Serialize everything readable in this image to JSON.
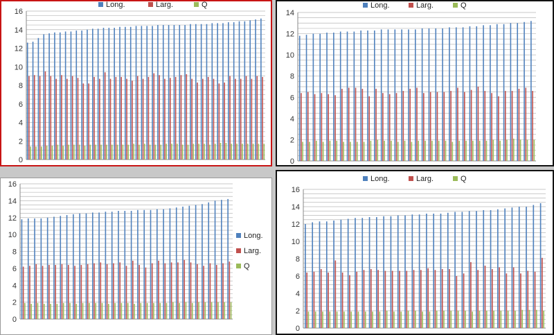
{
  "legend_labels": [
    "Long.",
    "Larg.",
    "Q"
  ],
  "colors": {
    "long": "#4f81bd",
    "larg": "#c0504d",
    "q": "#9bbb59",
    "grid": "#b8b8b8",
    "axis": "#888888"
  },
  "chart_data": [
    {
      "type": "bar",
      "ylim": [
        0,
        16
      ],
      "yticks": [
        0,
        2,
        4,
        6,
        8,
        10,
        12,
        14,
        16
      ],
      "grid": true,
      "legend_position": "top",
      "series": [
        {
          "name": "Long.",
          "values": [
            12.6,
            12.7,
            13.1,
            13.5,
            13.6,
            13.7,
            13.7,
            13.8,
            13.8,
            13.9,
            13.9,
            14.0,
            14.1,
            14.1,
            14.2,
            14.2,
            14.2,
            14.3,
            14.3,
            14.3,
            14.4,
            14.4,
            14.4,
            14.4,
            14.5,
            14.5,
            14.5,
            14.5,
            14.5,
            14.5,
            14.6,
            14.6,
            14.6,
            14.6,
            14.7,
            14.7,
            14.7,
            14.8,
            14.8,
            14.9,
            14.9,
            15.0,
            15.1,
            15.2
          ]
        },
        {
          "name": "Larg.",
          "values": [
            9.0,
            9.1,
            9.0,
            9.5,
            9.0,
            8.7,
            9.1,
            8.7,
            9.0,
            8.8,
            8.2,
            8.2,
            8.9,
            8.7,
            9.4,
            8.7,
            8.9,
            8.9,
            8.7,
            8.5,
            9.0,
            8.7,
            8.9,
            9.3,
            9.1,
            8.7,
            8.8,
            8.9,
            9.1,
            9.2,
            8.7,
            8.3,
            8.7,
            8.9,
            8.7,
            8.2,
            8.3,
            9.0,
            8.7,
            8.7,
            9.0,
            8.7,
            9.0,
            8.9
          ]
        },
        {
          "name": "Q",
          "values": [
            1.4,
            1.4,
            1.4,
            1.5,
            1.5,
            1.6,
            1.5,
            1.6,
            1.6,
            1.6,
            1.5,
            1.6,
            1.6,
            1.6,
            1.6,
            1.6,
            1.6,
            1.6,
            1.6,
            1.7,
            1.6,
            1.7,
            1.6,
            1.6,
            1.6,
            1.7,
            1.7,
            1.7,
            1.6,
            1.6,
            1.7,
            1.7,
            1.7,
            1.6,
            1.7,
            1.8,
            1.8,
            1.7,
            1.7,
            1.7,
            1.7,
            1.7,
            1.7,
            1.7
          ]
        }
      ]
    },
    {
      "type": "bar",
      "ylim": [
        0,
        14
      ],
      "yticks": [
        0,
        2,
        4,
        6,
        8,
        10,
        12,
        14
      ],
      "grid": true,
      "legend_position": "top",
      "series": [
        {
          "name": "Long.",
          "values": [
            11.8,
            11.9,
            12.0,
            12.0,
            12.1,
            12.1,
            12.2,
            12.2,
            12.2,
            12.3,
            12.3,
            12.3,
            12.4,
            12.4,
            12.4,
            12.4,
            12.4,
            12.4,
            12.5,
            12.5,
            12.5,
            12.5,
            12.6,
            12.6,
            12.6,
            12.7,
            12.7,
            12.8,
            12.8,
            12.9,
            12.9,
            13.0,
            13.0,
            13.1,
            13.2
          ]
        },
        {
          "name": "Larg.",
          "values": [
            6.4,
            6.5,
            6.3,
            6.4,
            6.3,
            6.2,
            6.8,
            6.9,
            6.9,
            6.8,
            6.1,
            6.8,
            6.4,
            6.3,
            6.4,
            6.6,
            6.8,
            6.9,
            6.4,
            6.5,
            6.5,
            6.5,
            6.6,
            6.9,
            6.5,
            6.7,
            7.0,
            6.6,
            6.4,
            6.1,
            6.6,
            6.6,
            6.8,
            6.9,
            6.6
          ]
        },
        {
          "name": "Q",
          "values": [
            1.8,
            1.8,
            1.9,
            1.8,
            1.9,
            1.9,
            1.8,
            1.8,
            1.8,
            1.8,
            1.9,
            2.0,
            1.9,
            1.9,
            1.8,
            1.9,
            1.8,
            1.9,
            1.9,
            1.9,
            1.9,
            1.9,
            1.8,
            1.9,
            1.9,
            1.9,
            1.9,
            1.9,
            2.0,
            1.9,
            2.0,
            2.1,
            2.0,
            2.0,
            2.0
          ]
        }
      ]
    },
    {
      "type": "bar",
      "ylim": [
        0,
        16
      ],
      "yticks": [
        0,
        2,
        4,
        6,
        8,
        10,
        12,
        14,
        16
      ],
      "grid": true,
      "legend_position": "right",
      "series": [
        {
          "name": "Long.",
          "values": [
            11.8,
            11.9,
            11.9,
            11.9,
            12.0,
            12.1,
            12.2,
            12.3,
            12.4,
            12.5,
            12.5,
            12.6,
            12.6,
            12.7,
            12.7,
            12.8,
            12.8,
            12.8,
            12.9,
            12.9,
            12.9,
            13.0,
            13.0,
            13.1,
            13.2,
            13.3,
            13.4,
            13.5,
            13.6,
            13.8,
            14.0,
            14.1,
            14.2
          ]
        },
        {
          "name": "Larg.",
          "values": [
            6.2,
            6.3,
            6.5,
            6.3,
            6.4,
            6.4,
            6.5,
            6.4,
            6.3,
            6.4,
            6.5,
            6.6,
            6.7,
            6.5,
            6.6,
            6.7,
            6.3,
            6.9,
            6.4,
            6.1,
            6.6,
            6.9,
            6.6,
            6.7,
            6.7,
            7.0,
            6.7,
            6.5,
            6.3,
            6.6,
            6.4,
            6.6,
            6.8
          ]
        },
        {
          "name": "Q",
          "values": [
            1.9,
            1.8,
            1.9,
            1.8,
            1.8,
            1.8,
            1.9,
            1.9,
            1.8,
            1.9,
            1.9,
            1.9,
            1.9,
            1.8,
            1.9,
            1.9,
            1.9,
            1.8,
            1.9,
            1.9,
            1.9,
            1.9,
            1.9,
            2.0,
            1.9,
            2.0,
            1.9,
            2.0,
            2.0,
            2.0,
            2.0,
            2.0,
            2.0
          ]
        }
      ]
    },
    {
      "type": "bar",
      "ylim": [
        0,
        16
      ],
      "yticks": [
        0,
        2,
        4,
        6,
        8,
        10,
        12,
        14,
        16
      ],
      "grid": true,
      "legend_position": "top",
      "series": [
        {
          "name": "Long.",
          "values": [
            12.0,
            12.2,
            12.3,
            12.3,
            12.4,
            12.5,
            12.6,
            12.7,
            12.7,
            12.8,
            12.8,
            12.9,
            12.9,
            13.0,
            13.0,
            13.1,
            13.1,
            13.2,
            13.2,
            13.2,
            13.3,
            13.4,
            13.4,
            13.5,
            13.5,
            13.6,
            13.6,
            13.7,
            13.8,
            13.9,
            14.0,
            14.0,
            14.2,
            14.4
          ]
        },
        {
          "name": "Larg.",
          "values": [
            6.4,
            6.5,
            6.8,
            6.4,
            7.8,
            6.4,
            6.1,
            6.5,
            6.7,
            6.8,
            6.7,
            6.6,
            6.6,
            6.6,
            6.6,
            6.7,
            6.7,
            6.9,
            6.7,
            6.8,
            6.8,
            6.0,
            6.3,
            7.6,
            6.7,
            7.2,
            6.8,
            7.0,
            6.3,
            7.0,
            6.3,
            6.6,
            6.5,
            8.1
          ]
        },
        {
          "name": "Q",
          "values": [
            1.9,
            1.9,
            1.9,
            1.9,
            1.9,
            1.9,
            1.9,
            1.9,
            1.9,
            1.9,
            1.9,
            2.0,
            1.9,
            1.9,
            2.0,
            2.0,
            1.9,
            1.9,
            2.0,
            2.0,
            2.0,
            2.0,
            2.0,
            1.9,
            2.0,
            2.0,
            2.0,
            2.0,
            2.0,
            2.0,
            2.1,
            2.1,
            2.1,
            2.0
          ]
        }
      ]
    }
  ]
}
